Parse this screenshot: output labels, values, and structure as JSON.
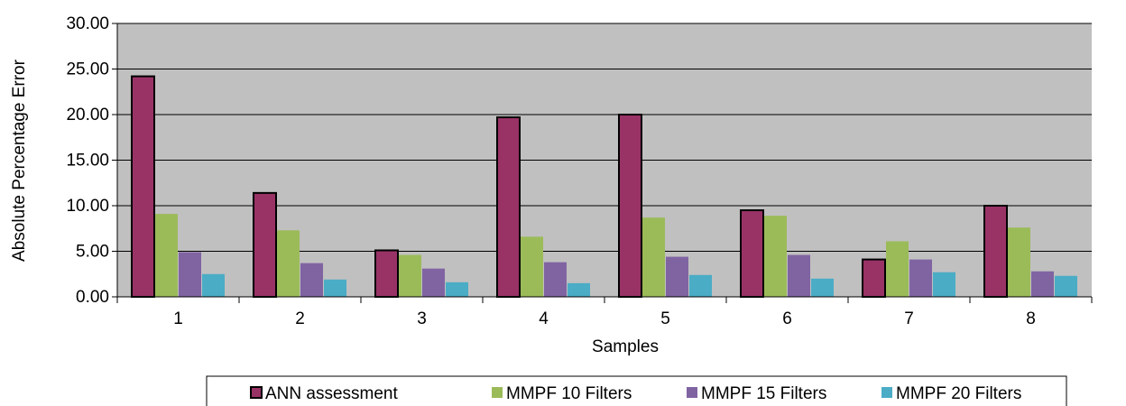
{
  "chart_data": {
    "type": "bar",
    "xlabel": "Samples",
    "ylabel": "Absolute Percentage Error",
    "ylim": [
      0,
      30
    ],
    "ytick_step": 5,
    "ytick_labels": [
      "0.00",
      "5.00",
      "10.00",
      "15.00",
      "20.00",
      "25.00",
      "30.00"
    ],
    "grid": true,
    "legend_position": "bottom",
    "categories": [
      "1",
      "2",
      "3",
      "4",
      "5",
      "6",
      "7",
      "8"
    ],
    "series": [
      {
        "name": "ANN assessment",
        "color": "#993366",
        "values": [
          24.2,
          11.4,
          5.1,
          19.7,
          20.0,
          9.5,
          4.1,
          10.0
        ]
      },
      {
        "name": "MMPF 10 Filters",
        "color": "#9BBB59",
        "values": [
          9.1,
          7.3,
          4.6,
          6.6,
          8.7,
          8.9,
          6.1,
          7.6
        ]
      },
      {
        "name": "MMPF 15 Filters",
        "color": "#8064A2",
        "values": [
          4.9,
          3.7,
          3.1,
          3.8,
          4.4,
          4.6,
          4.1,
          2.8
        ]
      },
      {
        "name": "MMPF 20 Filters",
        "color": "#4BACC6",
        "values": [
          2.5,
          1.9,
          1.6,
          1.5,
          2.4,
          2.0,
          2.7,
          2.3
        ]
      }
    ]
  },
  "style": {
    "plot_background": "#C0C0C0",
    "grid_color": "#000000"
  }
}
